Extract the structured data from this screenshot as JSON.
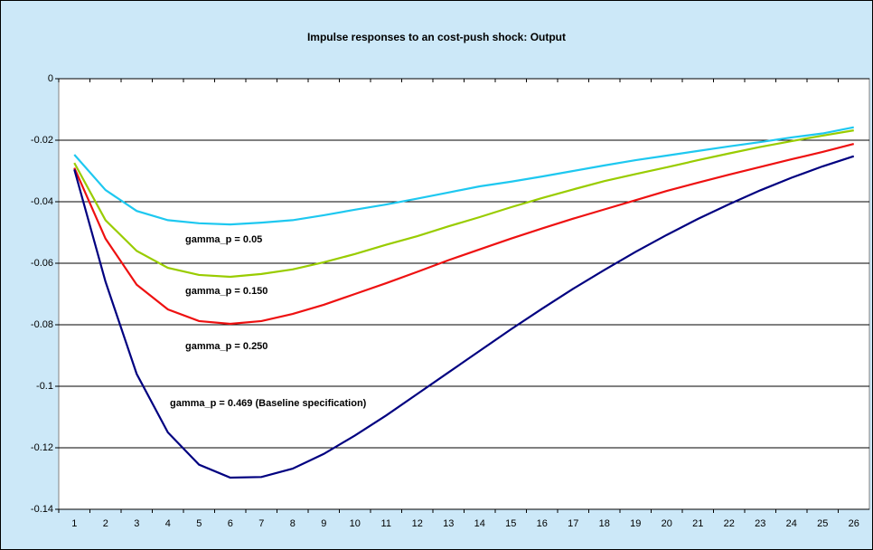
{
  "chart_data": {
    "type": "line",
    "title": "Impulse responses to an cost-push shock: Output",
    "categories": [
      "1",
      "2",
      "3",
      "4",
      "5",
      "6",
      "7",
      "8",
      "9",
      "10",
      "11",
      "12",
      "13",
      "14",
      "15",
      "16",
      "17",
      "18",
      "19",
      "20",
      "21",
      "22",
      "23",
      "24",
      "25",
      "26"
    ],
    "ylim": [
      -0.14,
      0
    ],
    "yticks": [
      0,
      -0.02,
      -0.04,
      -0.06,
      -0.08,
      -0.1,
      -0.12,
      -0.14
    ],
    "grid": true,
    "series": [
      {
        "name": "gamma_p = 0.05",
        "color": "#1ec8f0",
        "values": [
          -0.0247,
          -0.0362,
          -0.043,
          -0.046,
          -0.047,
          -0.0474,
          -0.0468,
          -0.046,
          -0.0444,
          -0.0426,
          -0.0409,
          -0.039,
          -0.037,
          -0.035,
          -0.0335,
          -0.0318,
          -0.03,
          -0.0282,
          -0.0265,
          -0.025,
          -0.0235,
          -0.022,
          -0.0206,
          -0.0191,
          -0.0178,
          -0.0158
        ]
      },
      {
        "name": "gamma_p = 0.150",
        "color": "#99cc00",
        "values": [
          -0.0274,
          -0.046,
          -0.056,
          -0.0615,
          -0.0638,
          -0.0644,
          -0.0635,
          -0.062,
          -0.0597,
          -0.057,
          -0.054,
          -0.0512,
          -0.048,
          -0.045,
          -0.0418,
          -0.0388,
          -0.036,
          -0.0333,
          -0.031,
          -0.0288,
          -0.0265,
          -0.0243,
          -0.0222,
          -0.0203,
          -0.0185,
          -0.0168
        ]
      },
      {
        "name": "gamma_p = 0.250",
        "color": "#ee1111",
        "values": [
          -0.029,
          -0.052,
          -0.067,
          -0.075,
          -0.0788,
          -0.0797,
          -0.0788,
          -0.0765,
          -0.0735,
          -0.07,
          -0.0665,
          -0.0628,
          -0.059,
          -0.0555,
          -0.052,
          -0.0487,
          -0.0455,
          -0.0425,
          -0.0395,
          -0.0365,
          -0.0338,
          -0.0312,
          -0.0287,
          -0.0262,
          -0.0238,
          -0.0212
        ]
      },
      {
        "name": "gamma_p = 0.469 (Baseline specification)",
        "color": "#000080",
        "values": [
          -0.0295,
          -0.066,
          -0.096,
          -0.115,
          -0.1255,
          -0.1297,
          -0.1295,
          -0.1268,
          -0.122,
          -0.116,
          -0.1095,
          -0.1025,
          -0.0955,
          -0.0885,
          -0.0815,
          -0.0748,
          -0.0683,
          -0.0622,
          -0.0563,
          -0.0508,
          -0.0456,
          -0.0408,
          -0.0363,
          -0.0322,
          -0.0285,
          -0.0252
        ]
      }
    ]
  }
}
